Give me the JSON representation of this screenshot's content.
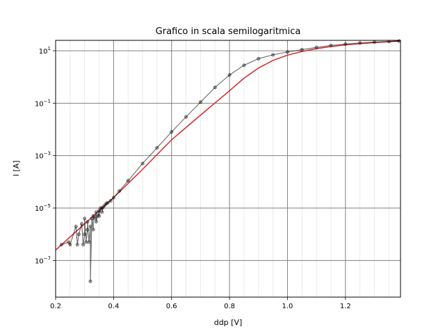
{
  "chart_data": {
    "type": "scatter",
    "title": "Grafico in scala semilogaritmica",
    "xlabel": "ddp [V]",
    "ylabel": "I [A]",
    "xlim": [
      0.2,
      1.39
    ],
    "ylim": [
      4e-09,
      25
    ],
    "yscale": "log",
    "grid": true,
    "x_ticks": [
      {
        "value": 0.2,
        "label": "0.2"
      },
      {
        "value": 0.4,
        "label": "0.4"
      },
      {
        "value": 0.6,
        "label": "0.6"
      },
      {
        "value": 0.8,
        "label": "0.8"
      },
      {
        "value": 1.0,
        "label": "1.0"
      },
      {
        "value": 1.2,
        "label": "1.2"
      }
    ],
    "y_ticks": [
      {
        "value": 1e-07,
        "base": "10",
        "exp": "−7"
      },
      {
        "value": 1e-05,
        "base": "10",
        "exp": "−5"
      },
      {
        "value": 0.001,
        "base": "10",
        "exp": "−3"
      },
      {
        "value": 0.1,
        "base": "10",
        "exp": "−1"
      },
      {
        "value": 10,
        "base": "10",
        "exp": "1"
      }
    ],
    "series": [
      {
        "kind": "points",
        "color": "#000000",
        "x": [
          0.22,
          0.245,
          0.25,
          0.27,
          0.275,
          0.28,
          0.29,
          0.295,
          0.3,
          0.3,
          0.305,
          0.31,
          0.31,
          0.315,
          0.32,
          0.32,
          0.325,
          0.33,
          0.33,
          0.335,
          0.34,
          0.34,
          0.345,
          0.35,
          0.35,
          0.355,
          0.36,
          0.36,
          0.365,
          0.37,
          0.375,
          0.38,
          0.39,
          0.4,
          0.42,
          0.45,
          0.5,
          0.55,
          0.6,
          0.65,
          0.7,
          0.75,
          0.8,
          0.85,
          0.9,
          0.95,
          1.0,
          1.05,
          1.1,
          1.15,
          1.2,
          1.25,
          1.3,
          1.35,
          1.385
        ],
        "y": [
          4e-07,
          5e-07,
          4e-07,
          2e-06,
          4e-07,
          1e-06,
          2.5e-06,
          4e-07,
          1e-06,
          4e-06,
          5e-07,
          1.5e-06,
          3e-06,
          5e-07,
          2e-06,
          1.6e-08,
          4e-06,
          1.5e-06,
          5e-06,
          4e-06,
          7e-06,
          3e-06,
          5e-06,
          8e-06,
          5e-06,
          1e-05,
          1e-05,
          7e-06,
          1.1e-05,
          1.3e-05,
          1.5e-05,
          1.6e-05,
          1.9e-05,
          2.5e-05,
          4.5e-05,
          0.00011,
          0.0005,
          0.002,
          0.008,
          0.03,
          0.11,
          0.4,
          1.2,
          2.8,
          5,
          7,
          9,
          11,
          13.5,
          16,
          18,
          20,
          21.5,
          22.5,
          23.5
        ]
      },
      {
        "kind": "fit",
        "color": "#d62728",
        "x": [
          0.2,
          0.3,
          0.4,
          0.5,
          0.6,
          0.7,
          0.8,
          0.85,
          0.9,
          0.95,
          1.0,
          1.05,
          1.1,
          1.15,
          1.2,
          1.25,
          1.3,
          1.35,
          1.39
        ],
        "y": [
          2.5e-07,
          2.5e-06,
          2.5e-05,
          0.0003,
          0.004,
          0.035,
          0.3,
          0.9,
          2.2,
          4.3,
          6.8,
          9.4,
          12,
          14.5,
          16.8,
          18.8,
          20.6,
          22.2,
          23.5
        ]
      }
    ]
  }
}
